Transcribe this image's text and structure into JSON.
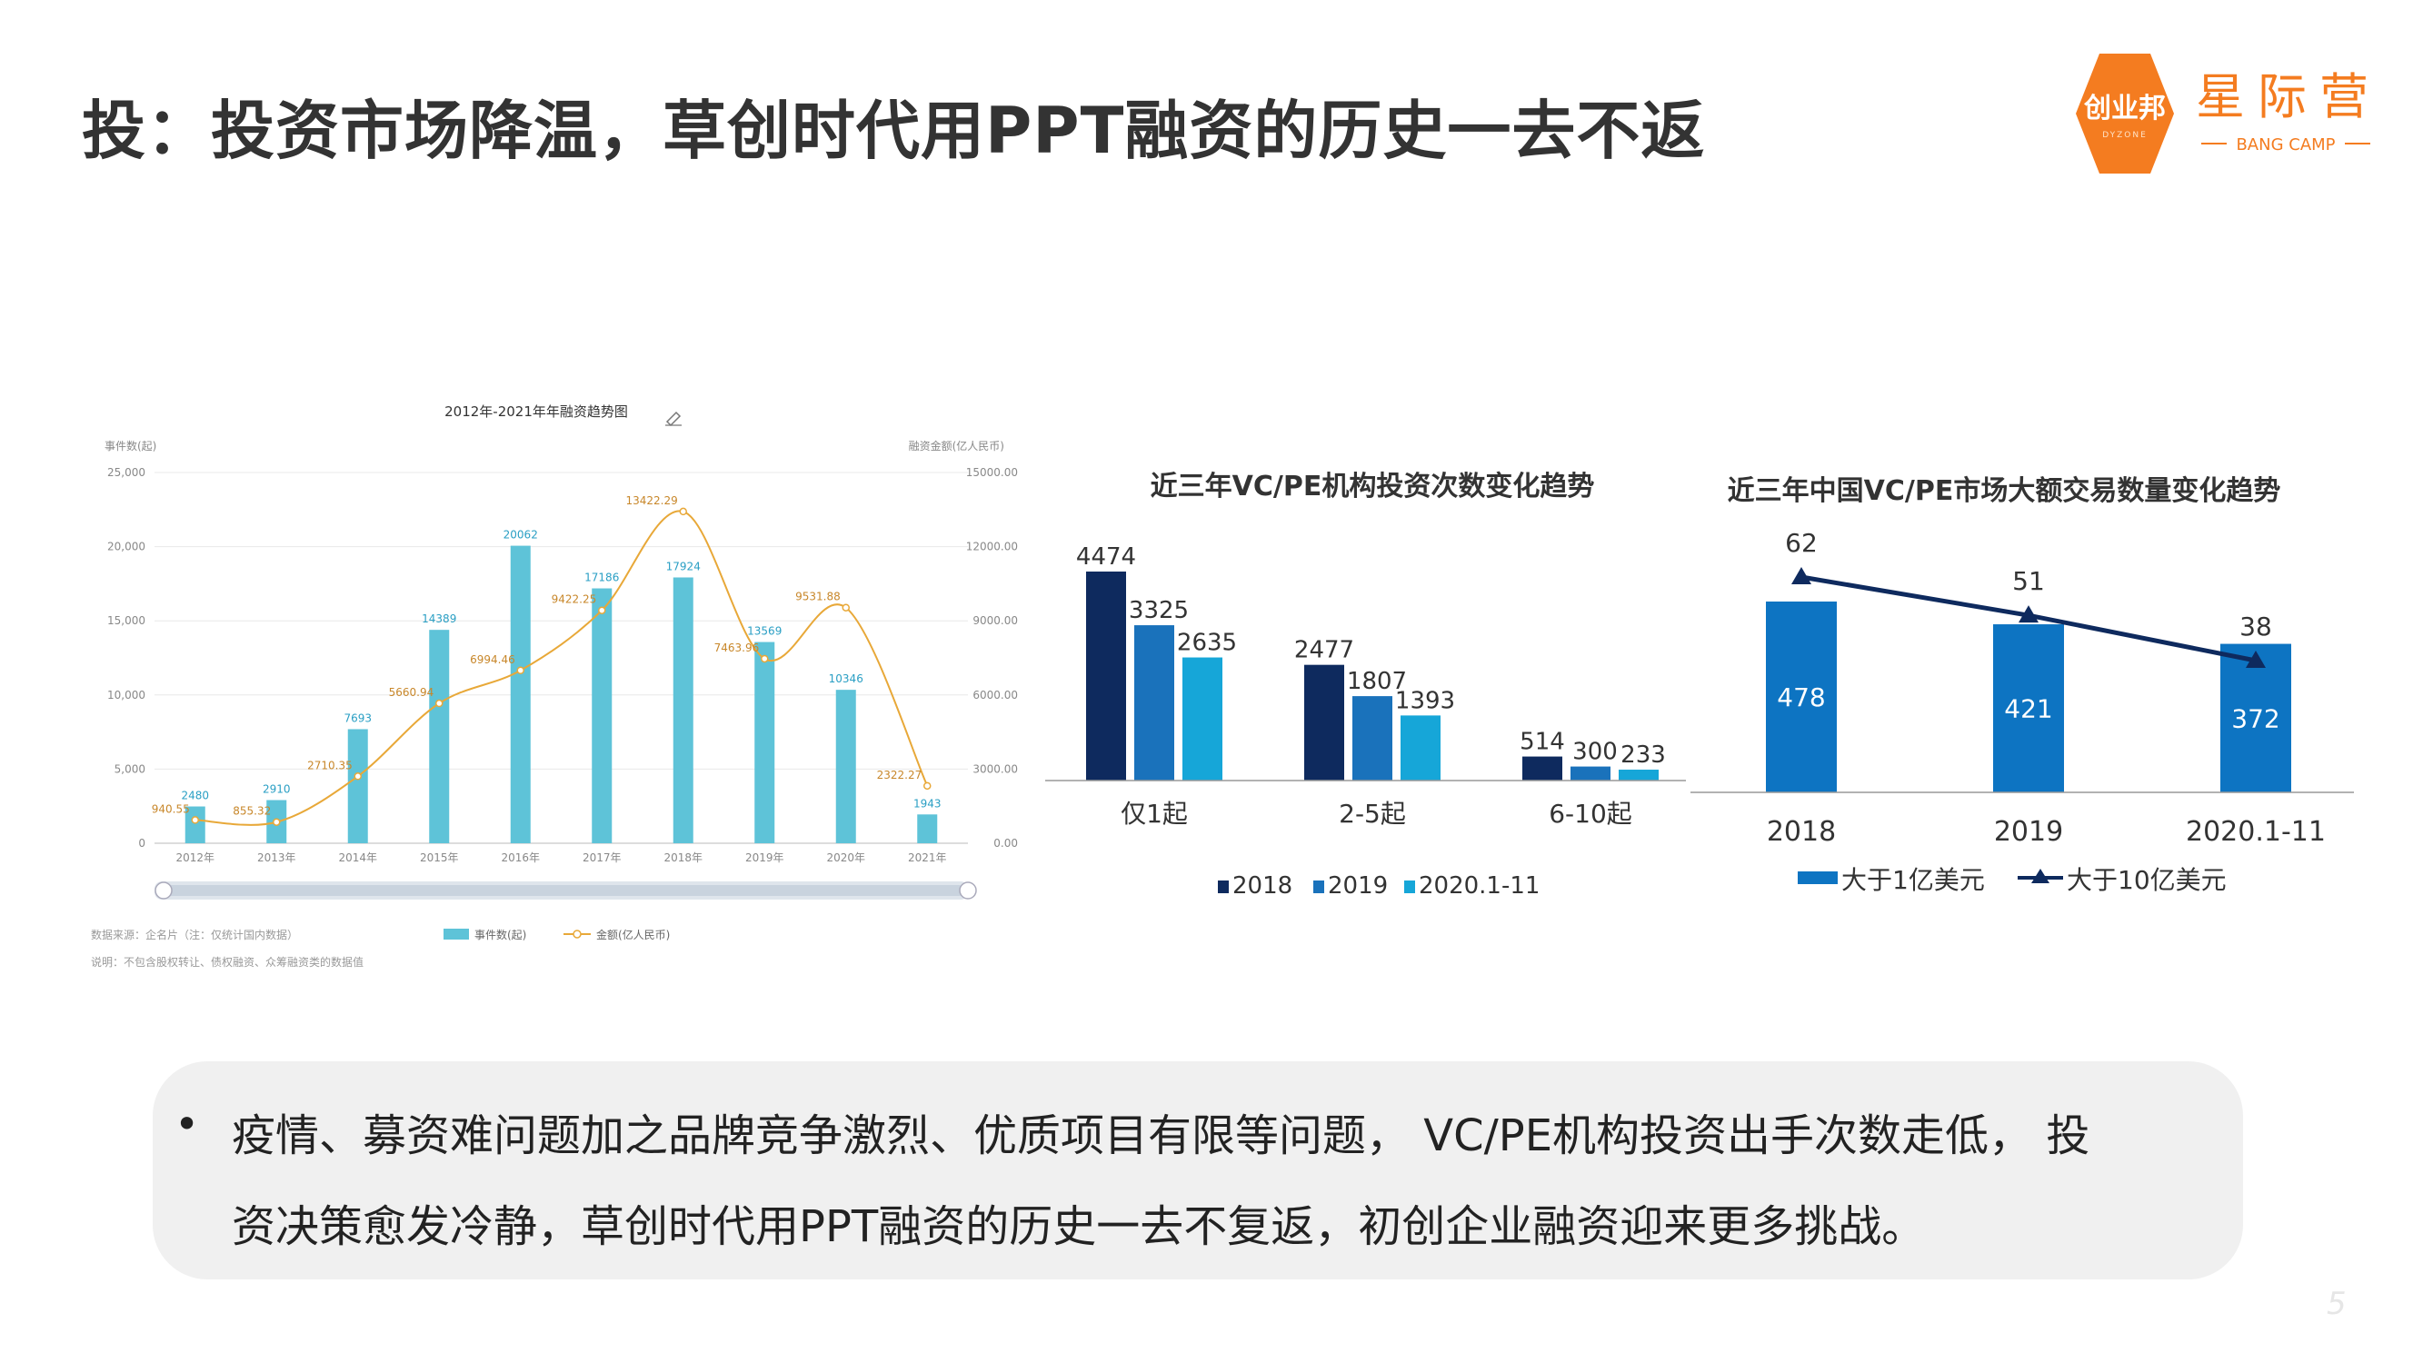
{
  "slide": {
    "title": "投：投资市场降温，草创时代用PPT融资的历史一去不返",
    "bullet_lines": [
      "疫情、募资难问题加之品牌竞争激烈、优质项目有限等问题， VC/PE机构投资出手次数走低， 投",
      "资决策愈发冷静，草创时代用PPT融资的历史一去不复返，初创企业融资迎来更多挑战。"
    ],
    "bullet_symbol": "•",
    "page_number": "5"
  },
  "logo": {
    "badge_text": "创业邦",
    "badge_sub": "DYZONE",
    "name": "星际营",
    "sub": "BANG CAMP"
  },
  "colors": {
    "orange": "#f47c20",
    "teal_bar": "#5ec3d8",
    "gold_line": "#e8a838",
    "navy": "#0e2a5e",
    "mid_blue": "#1a72bb",
    "cyan": "#16a6d8",
    "big_blue": "#0d74c2"
  },
  "chart_data": [
    {
      "type": "bar",
      "title": "2012年-2021年年融资趋势图",
      "ylabel": "事件数(起)",
      "y2label": "融资金额(亿人民币)",
      "categories": [
        "2012年",
        "2013年",
        "2014年",
        "2015年",
        "2016年",
        "2017年",
        "2018年",
        "2019年",
        "2020年",
        "2021年"
      ],
      "series": [
        {
          "name": "事件数(起)",
          "type": "bar",
          "axis": "left",
          "values": [
            2480,
            2910,
            7693,
            14389,
            20062,
            17186,
            17924,
            13569,
            10346,
            1943
          ]
        },
        {
          "name": "金额(亿人民币)",
          "type": "line",
          "axis": "right",
          "values": [
            940.55,
            855.32,
            2710.35,
            5660.94,
            6994.46,
            9422.25,
            13422.29,
            7463.96,
            9531.88,
            2322.27
          ]
        }
      ],
      "ylim": [
        0,
        25000
      ],
      "y2lim": [
        0,
        15000
      ],
      "yticks": [
        "0",
        "5,000",
        "10,000",
        "15,000",
        "20,000",
        "25,000"
      ],
      "y2ticks": [
        "0.00",
        "3000.00",
        "6000.00",
        "9000.00",
        "12000.00",
        "15000.00"
      ],
      "footnotes": [
        "数据来源：企名片（注：仅统计国内数据）",
        "说明：不包含股权转让、债权融资、众筹融资类的数据值"
      ],
      "legend_position": "bottom"
    },
    {
      "type": "bar",
      "title": "近三年VC/PE机构投资次数变化趋势",
      "categories": [
        "仅1起",
        "2-5起",
        "6-10起"
      ],
      "series": [
        {
          "name": "2018",
          "values": [
            4474,
            2477,
            514
          ]
        },
        {
          "name": "2019",
          "values": [
            3325,
            1807,
            300
          ]
        },
        {
          "name": "2020.1-11",
          "values": [
            2635,
            1393,
            233
          ]
        }
      ],
      "legend_position": "bottom"
    },
    {
      "type": "bar",
      "title": "近三年中国VC/PE市场大额交易数量变化趋势",
      "categories": [
        "2018",
        "2019",
        "2020.1-11"
      ],
      "series": [
        {
          "name": "大于1亿美元",
          "type": "bar",
          "values": [
            478,
            421,
            372
          ]
        },
        {
          "name": "大于10亿美元",
          "type": "line",
          "values": [
            62,
            51,
            38
          ]
        }
      ],
      "legend_position": "bottom"
    }
  ]
}
